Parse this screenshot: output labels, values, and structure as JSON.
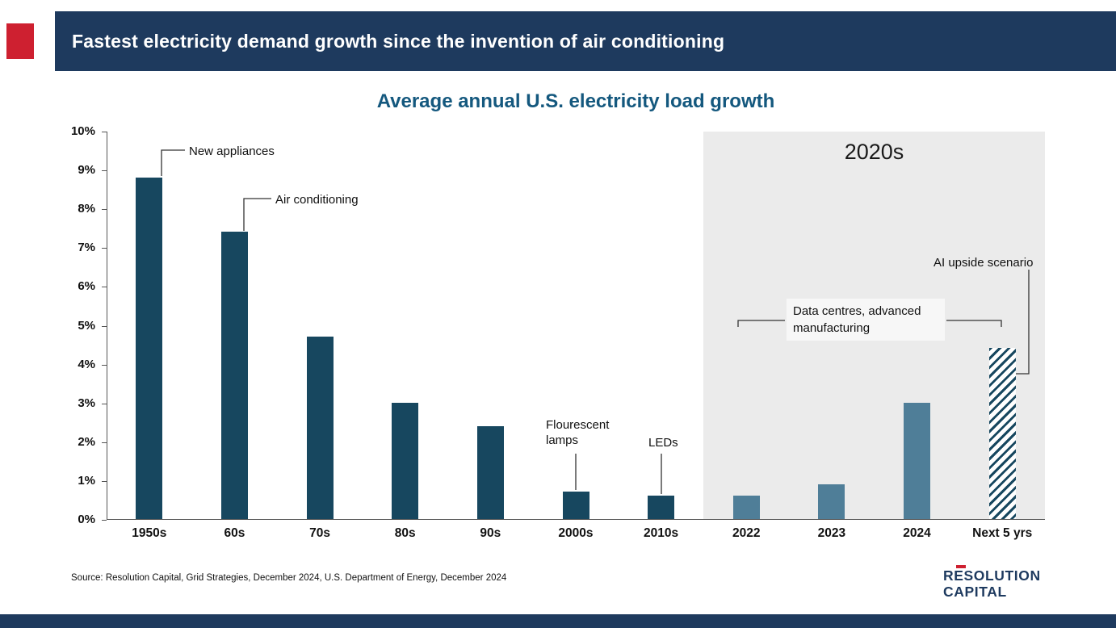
{
  "header": {
    "title": "Fastest electricity demand growth since the invention of air conditioning"
  },
  "chart_data": {
    "type": "bar",
    "title": "Average annual U.S. electricity load growth",
    "categories": [
      "1950s",
      "60s",
      "70s",
      "80s",
      "90s",
      "2000s",
      "2010s",
      "2022",
      "2023",
      "2024",
      "Next 5 yrs"
    ],
    "values": [
      8.8,
      7.4,
      4.7,
      3.0,
      2.4,
      0.7,
      0.6,
      0.6,
      0.9,
      3.0,
      4.4
    ],
    "bar_styles": [
      "dark",
      "dark",
      "dark",
      "dark",
      "dark",
      "dark",
      "dark",
      "light",
      "light",
      "light",
      "hatched"
    ],
    "ylim": [
      0,
      10
    ],
    "yticks": [
      "0%",
      "1%",
      "2%",
      "3%",
      "4%",
      "5%",
      "6%",
      "7%",
      "8%",
      "9%",
      "10%"
    ],
    "grid": false,
    "legend": "none",
    "highlight_region": {
      "label": "2020s",
      "start_category": "2022",
      "end_category": "Next 5 yrs",
      "bg_color": "#ebebeb"
    },
    "annotations": [
      {
        "id": "new-appliances",
        "text": "New appliances",
        "target": "1950s"
      },
      {
        "id": "air-conditioning",
        "text": "Air conditioning",
        "target": "60s"
      },
      {
        "id": "flourescent-lamps",
        "text": "Flourescent lamps",
        "target": "2000s"
      },
      {
        "id": "leds",
        "text": "LEDs",
        "target": "2010s"
      },
      {
        "id": "data-centres",
        "text": "Data centres, advanced manufacturing",
        "target": "2022 to Next 5 yrs"
      },
      {
        "id": "ai-upside",
        "text": "AI upside scenario",
        "target": "Next 5 yrs"
      }
    ],
    "colors": {
      "bar_dark": "#17475f",
      "bar_light": "#4f7e98",
      "hatch": "#17475f",
      "title": "#14587e",
      "header_bg": "#1e3a5e",
      "accent_red": "#ce2030"
    }
  },
  "footer": {
    "source": "Source: Resolution Capital, Grid Strategies, December 2024, U.S. Department of Energy, December 2024",
    "logo_line1": "RESOLUTION",
    "logo_line2": "CAPITAL"
  }
}
